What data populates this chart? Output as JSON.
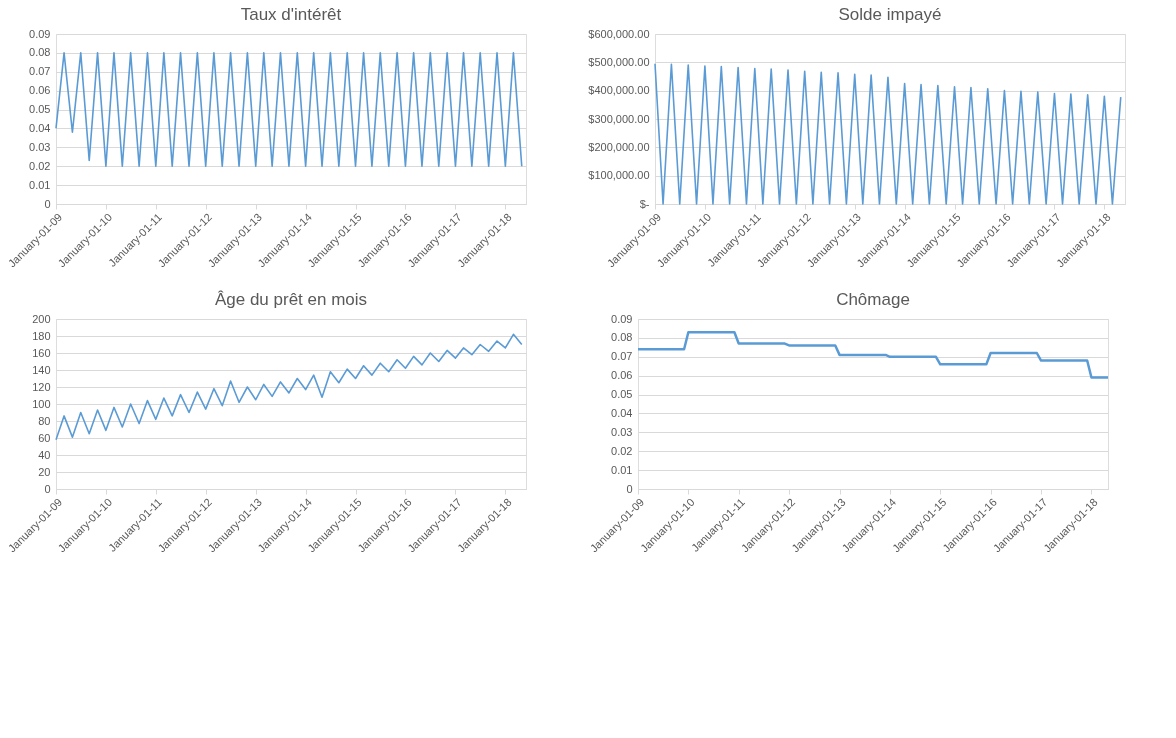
{
  "chart_data": [
    {
      "type": "line",
      "title": "Taux d'intérêt",
      "grid": "y",
      "line_style": "solid",
      "x": [
        "2009-01",
        "2009-03",
        "2009-05",
        "2009-07",
        "2009-09",
        "2009-11",
        "2010-01",
        "2010-03",
        "2010-05",
        "2010-07",
        "2010-09",
        "2010-11",
        "2011-01",
        "2011-03",
        "2011-05",
        "2011-07",
        "2011-09",
        "2011-11",
        "2012-01",
        "2012-03",
        "2012-05",
        "2012-07",
        "2012-09",
        "2012-11",
        "2013-01",
        "2013-03",
        "2013-05",
        "2013-07",
        "2013-09",
        "2013-11",
        "2014-01",
        "2014-03",
        "2014-05",
        "2014-07",
        "2014-09",
        "2014-11",
        "2015-01",
        "2015-03",
        "2015-05",
        "2015-07",
        "2015-09",
        "2015-11",
        "2016-01",
        "2016-03",
        "2016-05",
        "2016-07",
        "2016-09",
        "2016-11",
        "2017-01",
        "2017-03",
        "2017-05",
        "2017-07",
        "2017-09",
        "2017-11",
        "2018-01",
        "2018-03",
        "2018-05"
      ],
      "series": [
        {
          "color": "#5b9bd5",
          "values": [
            0.04,
            0.08,
            0.038,
            0.08,
            0.023,
            0.08,
            0.02,
            0.08,
            0.02,
            0.08,
            0.02,
            0.08,
            0.02,
            0.08,
            0.02,
            0.08,
            0.02,
            0.08,
            0.02,
            0.08,
            0.02,
            0.08,
            0.02,
            0.08,
            0.02,
            0.08,
            0.02,
            0.08,
            0.02,
            0.08,
            0.02,
            0.08,
            0.02,
            0.08,
            0.02,
            0.08,
            0.02,
            0.08,
            0.02,
            0.08,
            0.02,
            0.08,
            0.02,
            0.08,
            0.02,
            0.08,
            0.02,
            0.08,
            0.02,
            0.08,
            0.02,
            0.08,
            0.02,
            0.08,
            0.02,
            0.08,
            0.02
          ]
        }
      ],
      "xlim": [
        "2009-01-01",
        "2018-06-01"
      ],
      "xticks": [
        {
          "value": "2009-01-01",
          "label": "January-01-09"
        },
        {
          "value": "2010-01-01",
          "label": "January-01-10"
        },
        {
          "value": "2011-01-01",
          "label": "January-01-11"
        },
        {
          "value": "2012-01-01",
          "label": "January-01-12"
        },
        {
          "value": "2013-01-01",
          "label": "January-01-13"
        },
        {
          "value": "2014-01-01",
          "label": "January-01-14"
        },
        {
          "value": "2015-01-01",
          "label": "January-01-15"
        },
        {
          "value": "2016-01-01",
          "label": "January-01-16"
        },
        {
          "value": "2017-01-01",
          "label": "January-01-17"
        },
        {
          "value": "2018-01-01",
          "label": "January-01-18"
        }
      ],
      "ylim": [
        0,
        0.09
      ],
      "yticks": [
        0,
        0.01,
        0.02,
        0.03,
        0.04,
        0.05,
        0.06,
        0.07,
        0.08,
        0.09
      ]
    },
    {
      "type": "line",
      "title": "Solde impayé",
      "grid": "y",
      "line_style": "solid",
      "x": [
        "2009-01",
        "2009-03",
        "2009-05",
        "2009-07",
        "2009-09",
        "2009-11",
        "2010-01",
        "2010-03",
        "2010-05",
        "2010-07",
        "2010-09",
        "2010-11",
        "2011-01",
        "2011-03",
        "2011-05",
        "2011-07",
        "2011-09",
        "2011-11",
        "2012-01",
        "2012-03",
        "2012-05",
        "2012-07",
        "2012-09",
        "2012-11",
        "2013-01",
        "2013-03",
        "2013-05",
        "2013-07",
        "2013-09",
        "2013-11",
        "2014-01",
        "2014-03",
        "2014-05",
        "2014-07",
        "2014-09",
        "2014-11",
        "2015-01",
        "2015-03",
        "2015-05",
        "2015-07",
        "2015-09",
        "2015-11",
        "2016-01",
        "2016-03",
        "2016-05",
        "2016-07",
        "2016-09",
        "2016-11",
        "2017-01",
        "2017-03",
        "2017-05",
        "2017-07",
        "2017-09",
        "2017-11",
        "2018-01",
        "2018-03",
        "2018-05"
      ],
      "series": [
        {
          "color": "#5b9bd5",
          "values": [
            495000,
            0,
            493000,
            0,
            490000,
            0,
            487000,
            0,
            485000,
            0,
            482000,
            0,
            478000,
            0,
            476000,
            0,
            473000,
            0,
            468000,
            0,
            465000,
            0,
            463000,
            0,
            458000,
            0,
            455000,
            0,
            447000,
            0,
            425000,
            0,
            422000,
            0,
            418000,
            0,
            414000,
            0,
            411000,
            0,
            407000,
            0,
            400000,
            0,
            398000,
            0,
            395000,
            0,
            390000,
            0,
            388000,
            0,
            385000,
            0,
            380000,
            0,
            377000
          ]
        }
      ],
      "xlim": [
        "2009-01-01",
        "2018-06-01"
      ],
      "xticks": [
        {
          "value": "2009-01-01",
          "label": "January-01-09"
        },
        {
          "value": "2010-01-01",
          "label": "January-01-10"
        },
        {
          "value": "2011-01-01",
          "label": "January-01-11"
        },
        {
          "value": "2012-01-01",
          "label": "January-01-12"
        },
        {
          "value": "2013-01-01",
          "label": "January-01-13"
        },
        {
          "value": "2014-01-01",
          "label": "January-01-14"
        },
        {
          "value": "2015-01-01",
          "label": "January-01-15"
        },
        {
          "value": "2016-01-01",
          "label": "January-01-16"
        },
        {
          "value": "2017-01-01",
          "label": "January-01-17"
        },
        {
          "value": "2018-01-01",
          "label": "January-01-18"
        }
      ],
      "ylim": [
        0,
        600000
      ],
      "yticks": [
        {
          "value": 0,
          "label": "$-"
        },
        {
          "value": 100000,
          "label": "$100,000.00"
        },
        {
          "value": 200000,
          "label": "$200,000.00"
        },
        {
          "value": 300000,
          "label": "$300,000.00"
        },
        {
          "value": 400000,
          "label": "$400,000.00"
        },
        {
          "value": 500000,
          "label": "$500,000.00"
        },
        {
          "value": 600000,
          "label": "$600,000.00"
        }
      ]
    },
    {
      "type": "line",
      "title": "Âge du prêt en mois",
      "grid": "y",
      "line_style": "solid",
      "x": [
        "2009-01",
        "2009-03",
        "2009-05",
        "2009-07",
        "2009-09",
        "2009-11",
        "2010-01",
        "2010-03",
        "2010-05",
        "2010-07",
        "2010-09",
        "2010-11",
        "2011-01",
        "2011-03",
        "2011-05",
        "2011-07",
        "2011-09",
        "2011-11",
        "2012-01",
        "2012-03",
        "2012-05",
        "2012-07",
        "2012-09",
        "2012-11",
        "2013-01",
        "2013-03",
        "2013-05",
        "2013-07",
        "2013-09",
        "2013-11",
        "2014-01",
        "2014-03",
        "2014-05",
        "2014-07",
        "2014-09",
        "2014-11",
        "2015-01",
        "2015-03",
        "2015-05",
        "2015-07",
        "2015-09",
        "2015-11",
        "2016-01",
        "2016-03",
        "2016-05",
        "2016-07",
        "2016-09",
        "2016-11",
        "2017-01",
        "2017-03",
        "2017-05",
        "2017-07",
        "2017-09",
        "2017-11",
        "2018-01",
        "2018-03",
        "2018-05"
      ],
      "series": [
        {
          "color": "#5b9bd5",
          "values": [
            58,
            86,
            61,
            90,
            65,
            93,
            69,
            96,
            73,
            100,
            77,
            104,
            82,
            107,
            86,
            111,
            90,
            114,
            94,
            118,
            98,
            127,
            102,
            120,
            105,
            123,
            109,
            126,
            113,
            130,
            117,
            134,
            108,
            138,
            125,
            141,
            130,
            145,
            134,
            148,
            138,
            152,
            142,
            156,
            146,
            160,
            150,
            163,
            154,
            166,
            158,
            170,
            162,
            174,
            166,
            182,
            170
          ]
        }
      ],
      "xlim": [
        "2009-01-01",
        "2018-06-01"
      ],
      "xticks": [
        {
          "value": "2009-01-01",
          "label": "January-01-09"
        },
        {
          "value": "2010-01-01",
          "label": "January-01-10"
        },
        {
          "value": "2011-01-01",
          "label": "January-01-11"
        },
        {
          "value": "2012-01-01",
          "label": "January-01-12"
        },
        {
          "value": "2013-01-01",
          "label": "January-01-13"
        },
        {
          "value": "2014-01-01",
          "label": "January-01-14"
        },
        {
          "value": "2015-01-01",
          "label": "January-01-15"
        },
        {
          "value": "2016-01-01",
          "label": "January-01-16"
        },
        {
          "value": "2017-01-01",
          "label": "January-01-17"
        },
        {
          "value": "2018-01-01",
          "label": "January-01-18"
        }
      ],
      "ylim": [
        0,
        200
      ],
      "yticks": [
        0,
        20,
        40,
        60,
        80,
        100,
        120,
        140,
        160,
        180,
        200
      ]
    },
    {
      "type": "line",
      "title": "Chômage",
      "grid": "y",
      "line_style": "solid",
      "x": [
        "2009-01",
        "2009-12",
        "2010-01",
        "2010-12",
        "2011-01",
        "2011-12",
        "2012-01",
        "2012-12",
        "2013-01",
        "2013-12",
        "2014-01",
        "2014-12",
        "2015-01",
        "2015-12",
        "2016-01",
        "2016-12",
        "2017-01",
        "2017-12",
        "2018-01",
        "2018-05"
      ],
      "series": [
        {
          "color": "#5b9bd5",
          "values": [
            0.074,
            0.074,
            0.083,
            0.083,
            0.077,
            0.077,
            0.076,
            0.076,
            0.071,
            0.071,
            0.07,
            0.07,
            0.066,
            0.066,
            0.072,
            0.072,
            0.068,
            0.068,
            0.059,
            0.059
          ]
        }
      ],
      "xlim": [
        "2009-01-01",
        "2018-05-01"
      ],
      "xticks": [
        {
          "value": "2009-01-01",
          "label": "January-01-09"
        },
        {
          "value": "2010-01-01",
          "label": "January-01-10"
        },
        {
          "value": "2011-01-01",
          "label": "January-01-11"
        },
        {
          "value": "2012-01-01",
          "label": "January-01-12"
        },
        {
          "value": "2013-01-01",
          "label": "January-01-13"
        },
        {
          "value": "2014-01-01",
          "label": "January-01-14"
        },
        {
          "value": "2015-01-01",
          "label": "January-01-15"
        },
        {
          "value": "2016-01-01",
          "label": "January-01-16"
        },
        {
          "value": "2017-01-01",
          "label": "January-01-17"
        },
        {
          "value": "2018-01-01",
          "label": "January-01-18"
        }
      ],
      "ylim": [
        0,
        0.09
      ],
      "yticks": [
        0,
        0.01,
        0.02,
        0.03,
        0.04,
        0.05,
        0.06,
        0.07,
        0.08,
        0.09
      ]
    }
  ]
}
